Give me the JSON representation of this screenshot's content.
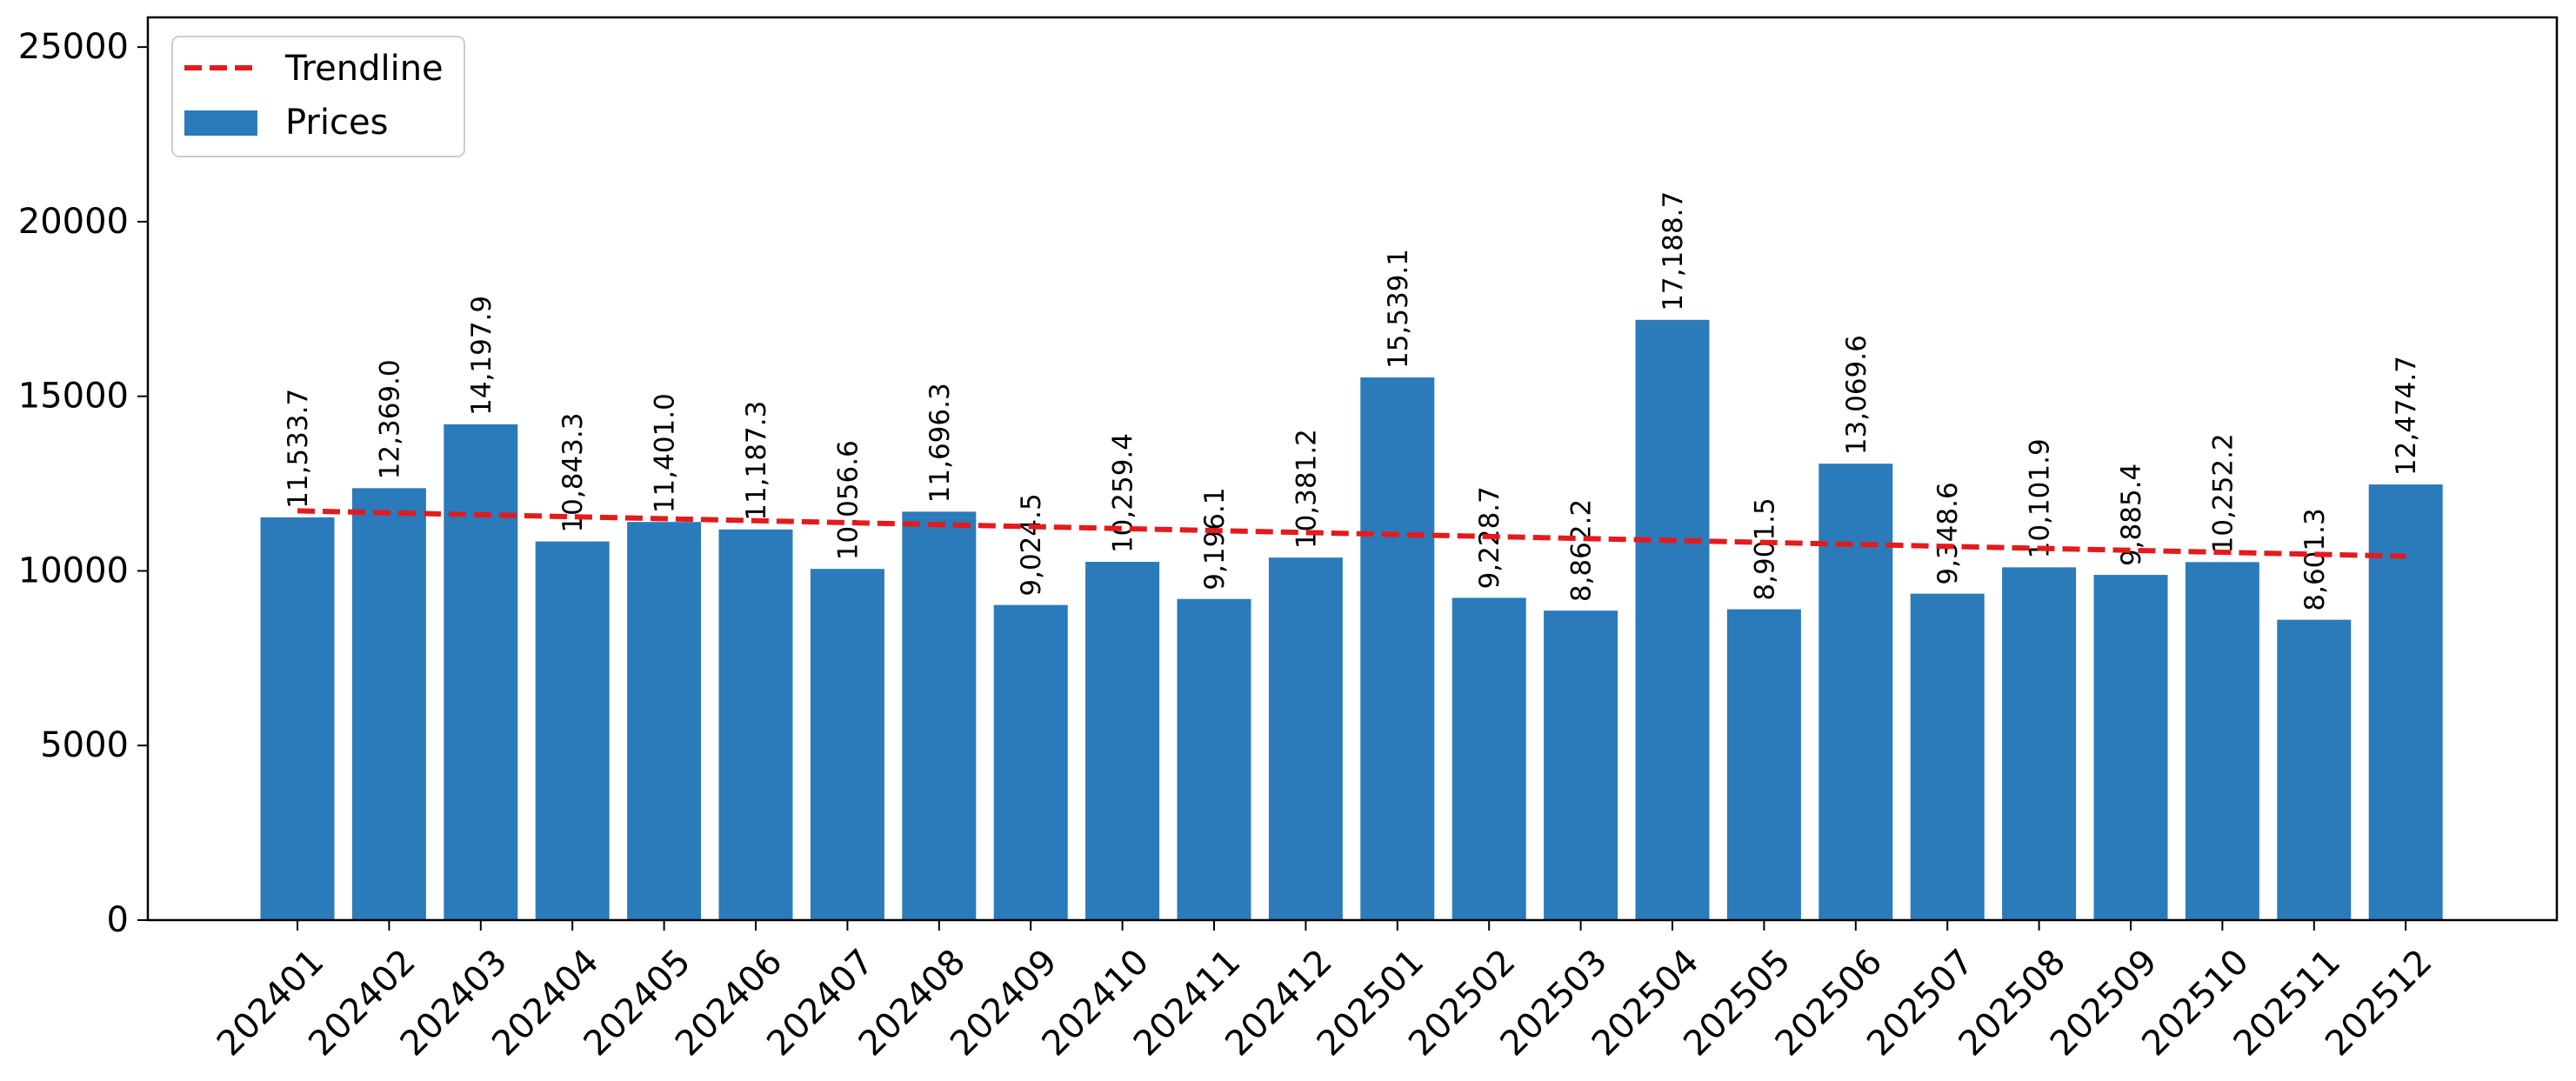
{
  "chart_data": {
    "type": "bar",
    "categories": [
      "202401",
      "202402",
      "202403",
      "202404",
      "202405",
      "202406",
      "202407",
      "202408",
      "202409",
      "202410",
      "202411",
      "202412",
      "202501",
      "202502",
      "202503",
      "202504",
      "202505",
      "202506",
      "202507",
      "202508",
      "202509",
      "202510",
      "202511",
      "202512"
    ],
    "series": [
      {
        "name": "Prices",
        "values": [
          11533.7,
          12369.0,
          14197.9,
          10843.3,
          11401.0,
          11187.3,
          10056.6,
          11696.3,
          9024.5,
          10259.4,
          9196.1,
          10381.2,
          15539.1,
          9228.7,
          8862.2,
          17188.7,
          8901.5,
          13069.6,
          9348.6,
          10101.9,
          9885.4,
          10252.2,
          8601.3,
          12474.7
        ],
        "data_labels": [
          "11,533.7",
          "12,369.0",
          "14,197.9",
          "10,843.3",
          "11,401.0",
          "11,187.3",
          "10,056.6",
          "11,696.3",
          "9,024.5",
          "10,259.4",
          "9,196.1",
          "10,381.2",
          "15,539.1",
          "9,228.7",
          "8,862.2",
          "17,188.7",
          "8,901.5",
          "13,069.6",
          "9,348.6",
          "10,101.9",
          "9,885.4",
          "10,252.2",
          "8,601.3",
          "12,474.7"
        ],
        "color": "#2b7bba"
      }
    ],
    "trendline": {
      "name": "Trendline",
      "start": 11720,
      "end": 10420,
      "color": "#e41a1c",
      "style": "dashed"
    },
    "title": "",
    "xlabel": "",
    "ylabel": "",
    "ylim": [
      0,
      25850
    ],
    "yticks": [
      0,
      5000,
      10000,
      15000,
      20000,
      25000
    ],
    "ytick_labels": [
      "0",
      "5000",
      "10000",
      "15000",
      "20000",
      "25000"
    ],
    "grid": false,
    "legend_position": "top-left"
  }
}
